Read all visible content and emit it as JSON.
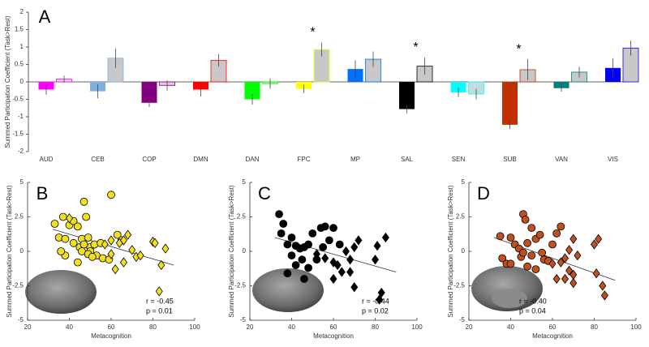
{
  "chart_data": [
    {
      "type": "bar",
      "panel_label": "A",
      "y_label": "Summed Participation Coefficient (Task>Rest)",
      "categories": [
        "AUD",
        "CEB",
        "COP",
        "DMN",
        "DAN",
        "FPC",
        "MP",
        "SAL",
        "SEN",
        "SUB",
        "VAN",
        "VIS"
      ],
      "series": [
        {
          "colors": [
            "#ff00ff",
            "#80b0e0",
            "#800080",
            "#ff0000",
            "#00ff00",
            "#ffff00",
            "#0070ff",
            "#000000",
            "#00ffff",
            "#c03000",
            "#008080",
            "#0000ff"
          ],
          "values": [
            -0.22,
            -0.27,
            -0.6,
            -0.22,
            -0.5,
            -0.2,
            0.37,
            -0.78,
            -0.3,
            -1.23,
            -0.18,
            0.4
          ],
          "errors": [
            0.15,
            0.2,
            0.12,
            0.2,
            0.15,
            0.12,
            0.25,
            0.12,
            0.13,
            0.12,
            0.1,
            0.28
          ]
        },
        {
          "colors": [
            "#f0c8f0",
            "#c8c8c8",
            "#e0cce0",
            "#c8c8c8",
            "#c8dcc8",
            "#c8c8c8",
            "#c8c8c8",
            "#c8c8c8",
            "#c0dcdc",
            "#c8c8c8",
            "#c8c8c8",
            "#c8c8c8"
          ],
          "edge_colors": [
            "#ff00ff",
            "#80b0e0",
            "#800080",
            "#ff0000",
            "#00ff00",
            "#ffff00",
            "#0070ff",
            "#000000",
            "#00ffff",
            "#c03000",
            "#008080",
            "#0000ff"
          ],
          "values": [
            0.08,
            0.68,
            -0.1,
            0.62,
            -0.05,
            0.93,
            0.65,
            0.45,
            -0.35,
            0.35,
            0.28,
            0.97
          ],
          "errors": [
            0.1,
            0.28,
            0.15,
            0.18,
            0.15,
            0.2,
            0.22,
            0.25,
            0.15,
            0.3,
            0.15,
            0.22
          ]
        }
      ],
      "annotations": [
        {
          "text": "*",
          "category": 5
        },
        {
          "text": "*",
          "category": 7
        },
        {
          "text": "*",
          "category": 9
        }
      ],
      "ylim": [
        -2,
        2
      ],
      "yticks": [
        -2,
        -1.5,
        -1,
        -0.5,
        0,
        0.5,
        1,
        1.5,
        2
      ]
    },
    {
      "type": "scatter",
      "panel_label": "B",
      "x_label": "Metacognition",
      "y_label": "Summed Participation Coefficient (Task>Rest)",
      "color": "#f2e01e",
      "series": [
        {
          "marker": "circle",
          "x": [
            33,
            35,
            37,
            40,
            42,
            44,
            46,
            47,
            48,
            49,
            50,
            45,
            47,
            50,
            52,
            53,
            55,
            38,
            36,
            42,
            44,
            46,
            49,
            51,
            60,
            63,
            65,
            56,
            59,
            38
          ],
          "values": [
            2.0,
            1.0,
            2.5,
            1.9,
            2.2,
            1.8,
            0.9,
            3.6,
            2.5,
            1.0,
            0.3,
            0.3,
            0.5,
            0.0,
            0.5,
            -0.3,
            0.6,
            -0.3,
            0.0,
            0.6,
            -0.8,
            0.0,
            -0.2,
            -0.4,
            4.1,
            1.2,
            0.8,
            -0.5,
            -0.6,
            0.9
          ]
        },
        {
          "marker": "diamond",
          "x": [
            40,
            57,
            60,
            64,
            66,
            68,
            70,
            72,
            74,
            80,
            81,
            84,
            86,
            83,
            62,
            66,
            60
          ],
          "values": [
            2.4,
            0.5,
            0.8,
            0.6,
            0.8,
            1.2,
            0.1,
            -0.4,
            -0.3,
            0.7,
            0.6,
            -1.0,
            0.2,
            -2.9,
            -1.3,
            -0.8,
            -0.2
          ]
        }
      ],
      "fit": {
        "x": [
          32,
          90
        ],
        "values": [
          1.6,
          -1.0
        ]
      },
      "annotations": [
        "r = -0.45",
        "p = 0.01"
      ],
      "xlim": [
        20,
        100
      ],
      "xticks": [
        20,
        40,
        60,
        80,
        100
      ],
      "ylim": [
        -5,
        5
      ],
      "yticks": [
        -5,
        -2.5,
        0,
        2.5,
        5
      ]
    },
    {
      "type": "scatter",
      "panel_label": "C",
      "x_label": "Metacognition",
      "y_label": "Summed Participation Coefficient (Task>Rest)",
      "color": "#000000",
      "series": [
        {
          "marker": "circle",
          "x": [
            34,
            35,
            36,
            38,
            40,
            42,
            44,
            45,
            46,
            48,
            50,
            52,
            54,
            55,
            56,
            58,
            60,
            42,
            38,
            48,
            46,
            63,
            40
          ],
          "values": [
            2.7,
            1.3,
            2.0,
            0.5,
            -0.3,
            0.4,
            0.2,
            -0.6,
            0.3,
            0.5,
            1.3,
            -0.6,
            1.7,
            0.3,
            1.8,
            0.8,
            1.7,
            -1.0,
            -1.6,
            -1.2,
            -2.0,
            0.5,
            1.0
          ]
        },
        {
          "marker": "diamond",
          "x": [
            52,
            56,
            60,
            62,
            64,
            66,
            68,
            70,
            72,
            70,
            80,
            81,
            85,
            82,
            83,
            68,
            60
          ],
          "values": [
            -0.2,
            -0.5,
            -0.8,
            -1.0,
            -1.5,
            0.0,
            -0.6,
            0.3,
            0.8,
            -2.6,
            -0.6,
            0.4,
            1.0,
            -3.5,
            -3.0,
            -1.5,
            -2.0
          ]
        }
      ],
      "fit": {
        "x": [
          32,
          90
        ],
        "values": [
          1.0,
          -1.5
        ]
      },
      "annotations": [
        "r = -0.44",
        "p = 0.02"
      ],
      "xlim": [
        20,
        100
      ],
      "xticks": [
        20,
        40,
        60,
        80,
        100
      ],
      "ylim": [
        -5,
        5
      ],
      "yticks": [
        -5,
        -2.5,
        0,
        2.5,
        5
      ]
    },
    {
      "type": "scatter",
      "panel_label": "D",
      "x_label": "Metacognition",
      "y_label": "Summed Participation Coefficient (Task>Rest)",
      "color": "#c05020",
      "series": [
        {
          "marker": "circle",
          "x": [
            35,
            36,
            38,
            40,
            42,
            44,
            45,
            46,
            47,
            48,
            50,
            52,
            54,
            56,
            58,
            60,
            62,
            64,
            50,
            48,
            52,
            55,
            40,
            46
          ],
          "values": [
            1.1,
            -0.5,
            -0.9,
            -0.9,
            0.5,
            0.2,
            -0.4,
            2.7,
            2.3,
            0.6,
            1.7,
            0.9,
            1.2,
            -0.6,
            -0.7,
            0.5,
            1.3,
            1.8,
            -0.3,
            -1.1,
            -1.3,
            -0.1,
            1.0,
            -0.1
          ]
        },
        {
          "marker": "diamond",
          "x": [
            60,
            64,
            66,
            68,
            70,
            72,
            68,
            70,
            66,
            80,
            82,
            81,
            84,
            85,
            62,
            70
          ],
          "values": [
            -0.9,
            -0.8,
            -0.5,
            0.1,
            0.9,
            -0.3,
            -1.4,
            -1.7,
            -2.0,
            0.5,
            0.9,
            -1.6,
            -2.5,
            -3.2,
            -2.0,
            -2.3
          ]
        }
      ],
      "fit": {
        "x": [
          32,
          90
        ],
        "values": [
          1.0,
          -2.1
        ]
      },
      "annotations": [
        "r = -0.40",
        "p = 0.04"
      ],
      "xlim": [
        20,
        100
      ],
      "xticks": [
        20,
        40,
        60,
        80,
        100
      ],
      "ylim": [
        -5,
        5
      ],
      "yticks": [
        -5,
        -2.5,
        0,
        2.5,
        5
      ]
    }
  ]
}
